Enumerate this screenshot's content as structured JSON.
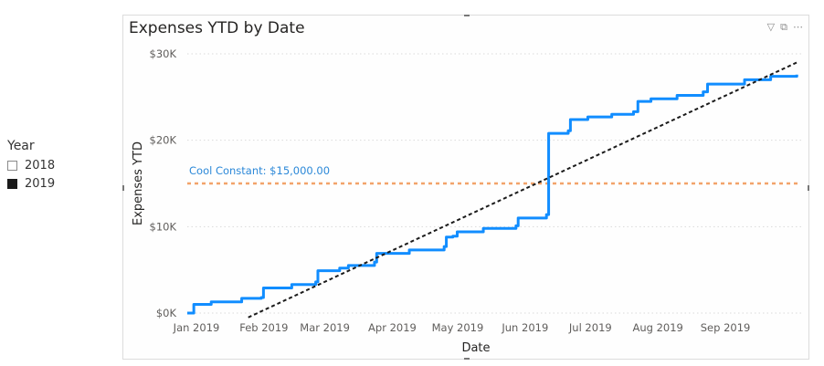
{
  "slicer": {
    "title": "Year",
    "items": [
      {
        "label": "2018",
        "checked": false
      },
      {
        "label": "2019",
        "checked": true
      }
    ]
  },
  "visual": {
    "title": "Expenses YTD by Date",
    "icons": [
      "filter-icon",
      "focus-mode-icon",
      "more-options-icon"
    ]
  },
  "colors": {
    "series": "#118dff",
    "trend": "#1b1b1b",
    "constant_line": "#f2a36b",
    "constant_label": "#2b88d8",
    "gridline": "#d9d9d9"
  },
  "chart_data": {
    "type": "line",
    "title": "Expenses YTD by Date",
    "xlabel": "Date",
    "ylabel": "Expenses YTD",
    "x_ticks": [
      "Jan 2019",
      "Feb 2019",
      "Mar 2019",
      "Apr 2019",
      "May 2019",
      "Jun 2019",
      "Jul 2019",
      "Aug 2019",
      "Sep 2019"
    ],
    "y_ticks": [
      "$0K",
      "$10K",
      "$20K",
      "$30K"
    ],
    "ylim": [
      0,
      30000
    ],
    "xlim": [
      "2019-01-01",
      "2019-10-10"
    ],
    "grid": true,
    "series": [
      {
        "points": [
          [
            "2019-01-01",
            0
          ],
          [
            "2019-01-03",
            0
          ],
          [
            "2019-01-04",
            1000
          ],
          [
            "2019-01-12",
            1300
          ],
          [
            "2019-01-26",
            1700
          ],
          [
            "2019-02-04",
            1800
          ],
          [
            "2019-02-05",
            2900
          ],
          [
            "2019-02-18",
            3300
          ],
          [
            "2019-03-01",
            3600
          ],
          [
            "2019-03-02",
            4900
          ],
          [
            "2019-03-12",
            5200
          ],
          [
            "2019-03-16",
            5500
          ],
          [
            "2019-03-28",
            5900
          ],
          [
            "2019-03-29",
            6900
          ],
          [
            "2019-04-13",
            7300
          ],
          [
            "2019-04-29",
            7700
          ],
          [
            "2019-04-30",
            8800
          ],
          [
            "2019-05-03",
            8900
          ],
          [
            "2019-05-05",
            9400
          ],
          [
            "2019-05-17",
            9800
          ],
          [
            "2019-06-01",
            10100
          ],
          [
            "2019-06-02",
            11000
          ],
          [
            "2019-06-15",
            11400
          ],
          [
            "2019-06-16",
            20800
          ],
          [
            "2019-06-25",
            21100
          ],
          [
            "2019-06-26",
            22400
          ],
          [
            "2019-07-04",
            22700
          ],
          [
            "2019-07-15",
            23000
          ],
          [
            "2019-07-25",
            23300
          ],
          [
            "2019-07-27",
            24500
          ],
          [
            "2019-08-02",
            24800
          ],
          [
            "2019-08-14",
            25200
          ],
          [
            "2019-08-26",
            25600
          ],
          [
            "2019-08-28",
            26500
          ],
          [
            "2019-09-14",
            27000
          ],
          [
            "2019-09-26",
            27400
          ],
          [
            "2019-10-08",
            27600
          ]
        ]
      }
    ],
    "trend_line": {
      "points": [
        [
          "2019-01-29",
          -500
        ],
        [
          "2019-10-08",
          29000
        ]
      ]
    },
    "constant_line": {
      "label": "Cool Constant: $15,000.00",
      "value": 15000
    }
  }
}
